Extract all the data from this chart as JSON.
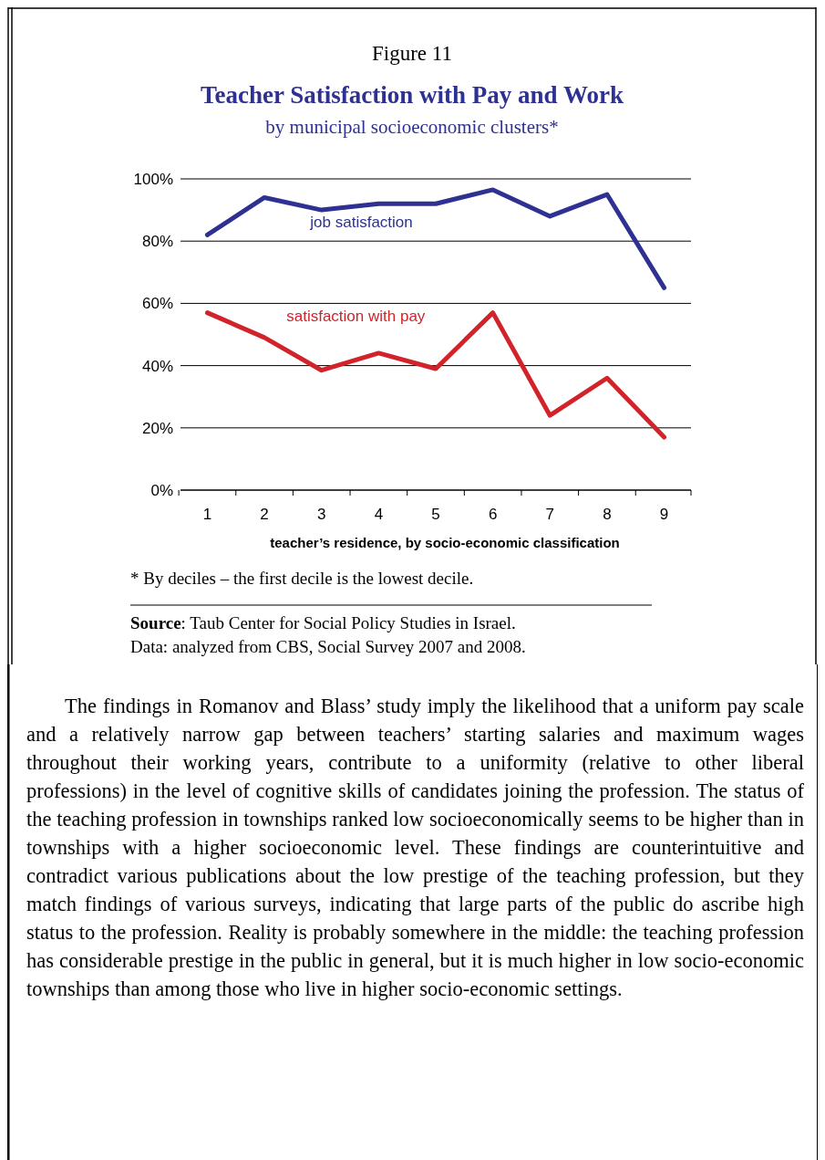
{
  "chart_data": {
    "type": "line",
    "title": "Teacher Satisfaction with Pay and Work",
    "subtitle": "by municipal socioeconomic clusters*",
    "xlabel": "teacher’s residence, by socio-economic classification",
    "categories": [
      "1",
      "2",
      "3",
      "4",
      "5",
      "6",
      "7",
      "8",
      "9"
    ],
    "series": [
      {
        "name": "job satisfaction",
        "color": "#2e3191",
        "values": [
          82,
          94,
          90,
          92,
          92,
          96.5,
          88,
          95,
          65
        ]
      },
      {
        "name": "satisfaction with pay",
        "color": "#d2232a",
        "values": [
          57,
          49,
          38.5,
          44,
          39,
          57,
          24,
          36,
          17
        ]
      }
    ],
    "ylim": [
      0,
      100
    ],
    "yticks": [
      {
        "value": 0,
        "label": "0%"
      },
      {
        "value": 20,
        "label": "20%"
      },
      {
        "value": 40,
        "label": "40%"
      },
      {
        "value": 60,
        "label": "60%"
      },
      {
        "value": 80,
        "label": "80%"
      },
      {
        "value": 100,
        "label": "100%"
      }
    ],
    "grid": "y",
    "legend": false,
    "marker": "none",
    "line_style": "solid",
    "annotations": [
      "Figure 11",
      "* By deciles – the first decile is the lowest decile.",
      "Source: Taub Center for Social Policy Studies in Israel.",
      "Data: analyzed from CBS, Social Survey 2007 and 2008.",
      "The findings in Romanov and Blass’ study imply the likelihood that a uniform pay scale and a relatively narrow gap between teachers’ starting salaries and maximum wages throughout their working years, contribute to a uniformity (relative to other liberal professions) in the level of cognitive skills of candidates joining the profession. The status of the teaching profession in townships ranked low socioeconomically seems to be higher than in townships with a higher socioeconomic level. These findings are counterintuitive and contradict various publications about the low prestige of the teaching profession, but they match findings of various surveys, indicating that large parts of the public do ascribe high status to the profession. Reality is probably somewhere in the middle: the teaching profession has considerable prestige in the public in general, but it is much higher in low socio-economic townships than among those who live in higher socio-economic settings."
    ]
  }
}
